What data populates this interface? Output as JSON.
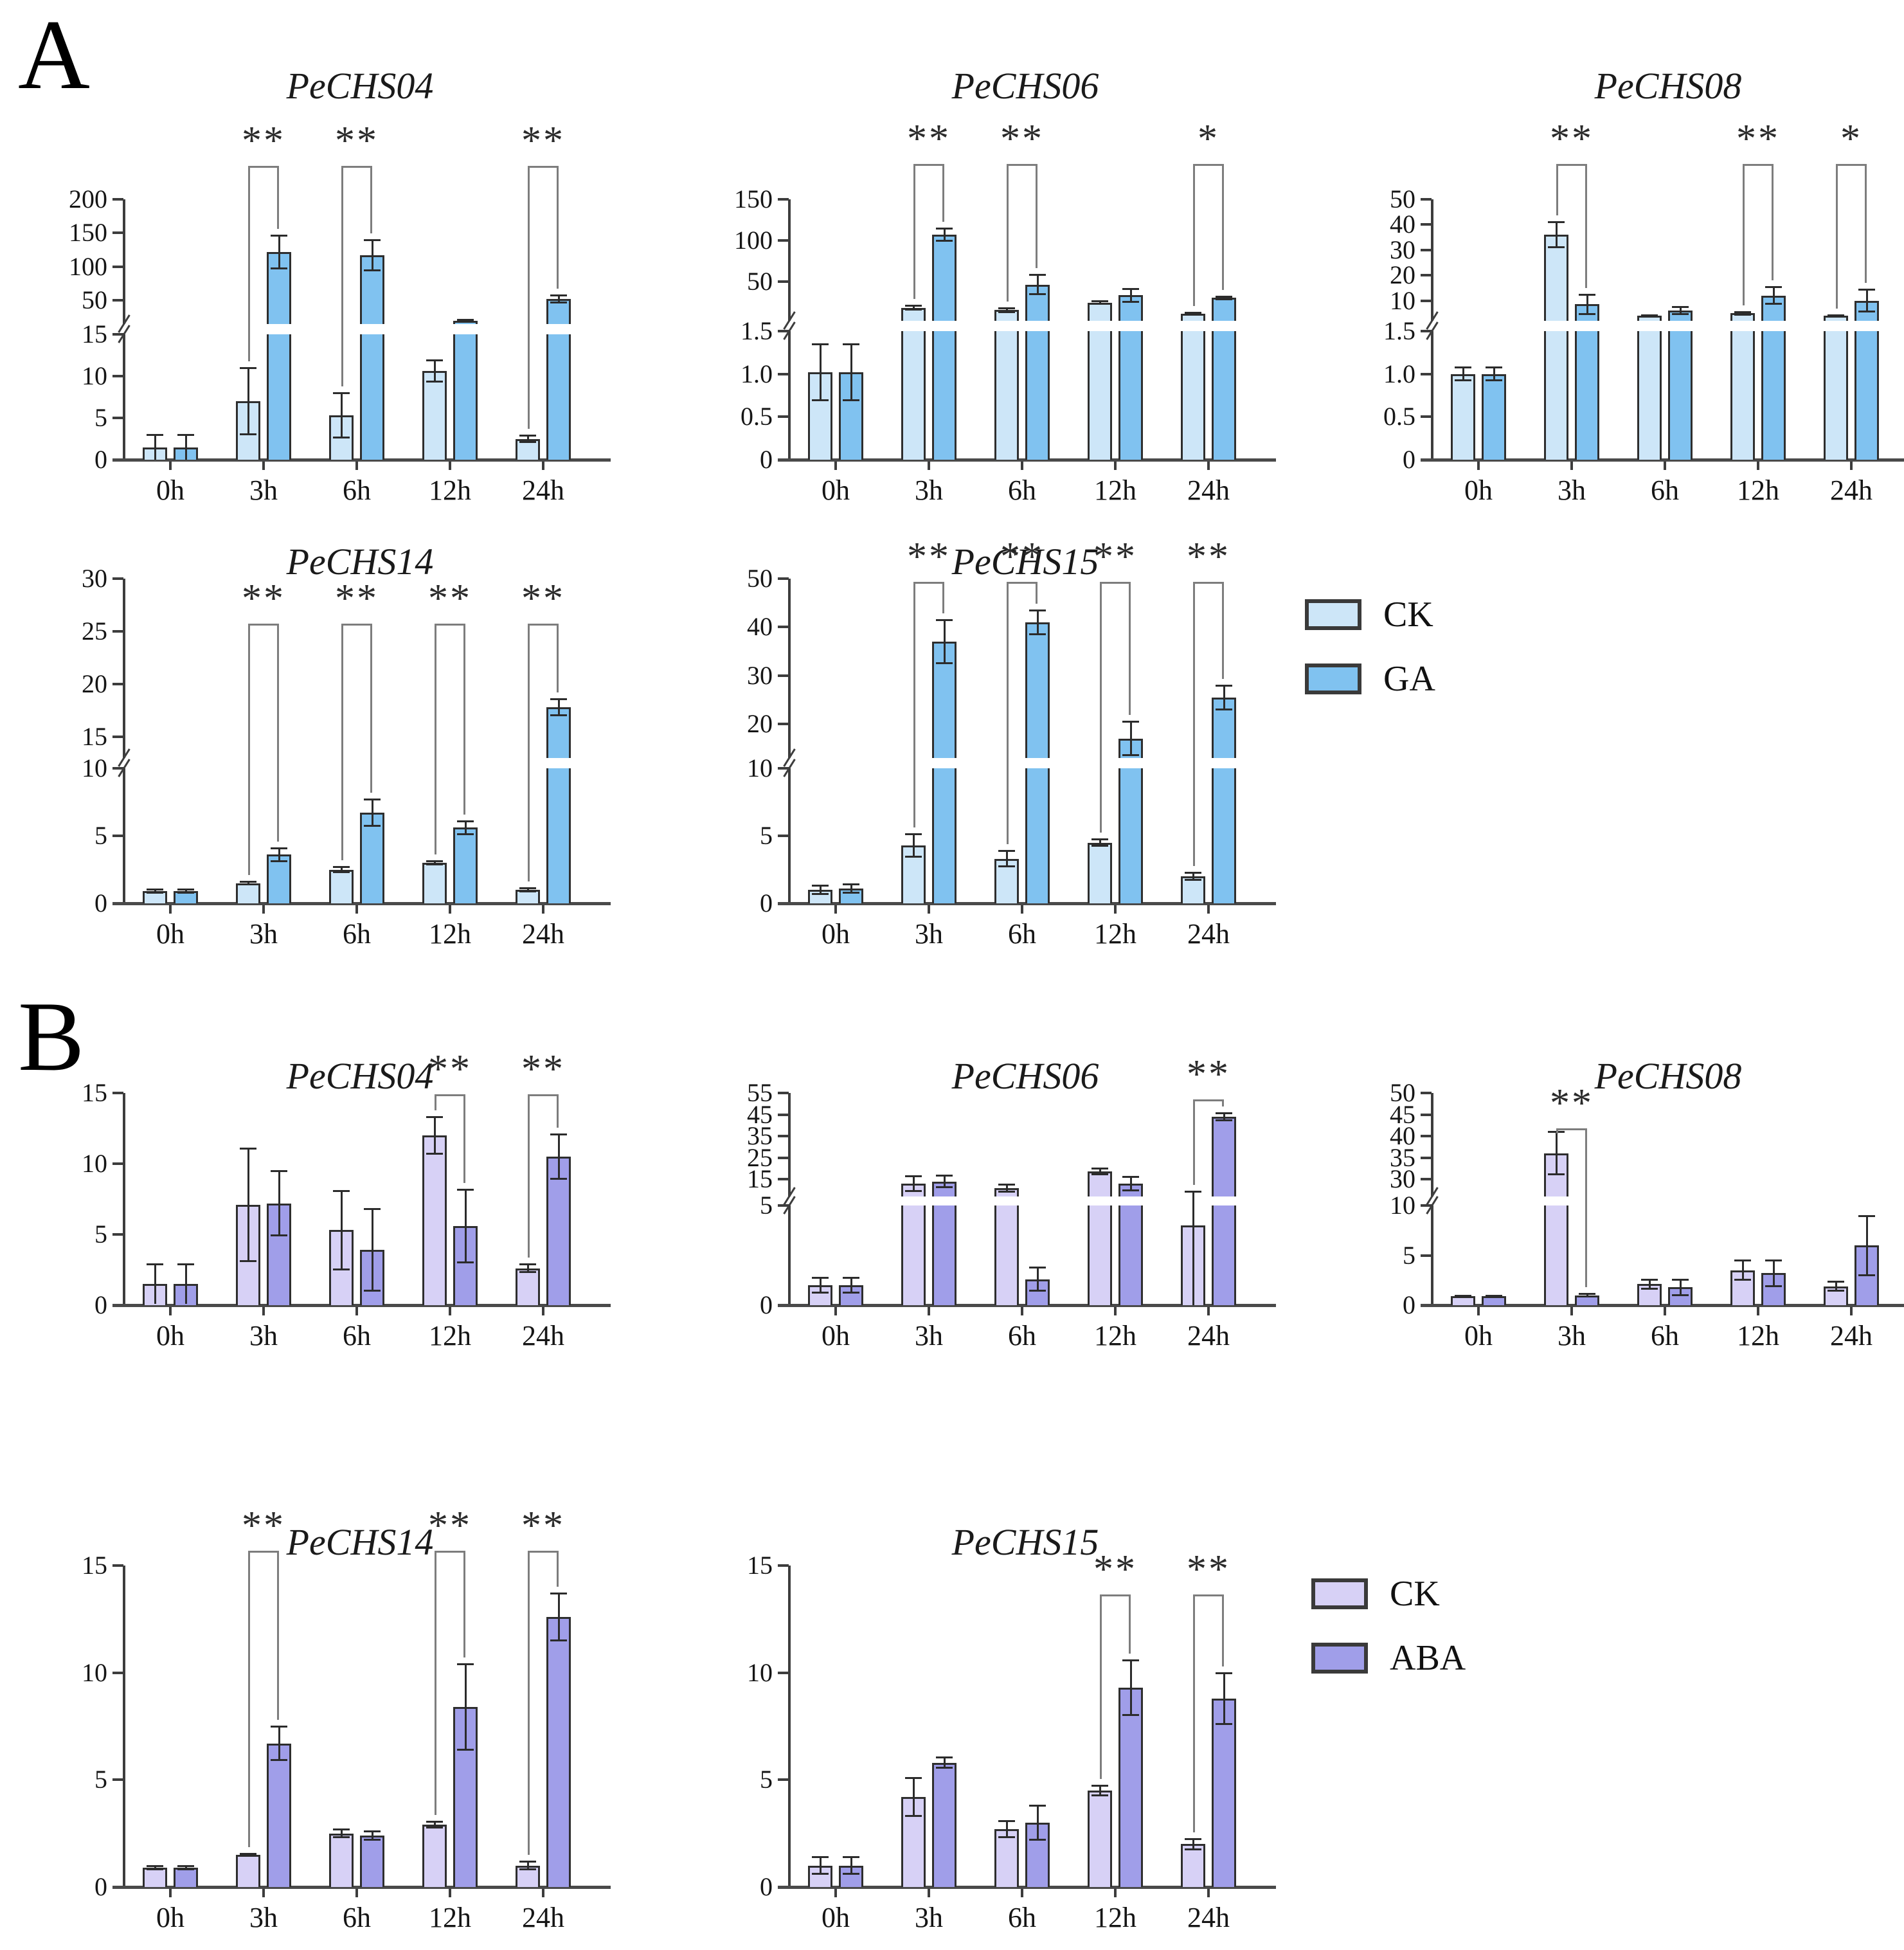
{
  "figure": {
    "panels": [
      {
        "label": "A",
        "treatment": "GA"
      },
      {
        "label": "B",
        "treatment": "ABA"
      }
    ],
    "x_axis_categories": [
      "0h",
      "3h",
      "6h",
      "12h",
      "24h"
    ]
  },
  "legends": [
    {
      "panel": "A",
      "items": [
        {
          "label": "CK",
          "color": "#cde6f8"
        },
        {
          "label": "GA",
          "color": "#80c2f0"
        }
      ]
    },
    {
      "panel": "B",
      "items": [
        {
          "label": "CK",
          "color": "#d7d1f6"
        },
        {
          "label": "ABA",
          "color": "#a09ee9"
        }
      ]
    }
  ],
  "chart_data": [
    {
      "panel": "A",
      "title": "PeCHS04",
      "type": "bar",
      "categories": [
        "0h",
        "3h",
        "6h",
        "12h",
        "24h"
      ],
      "series": [
        {
          "name": "CK",
          "color": "#cde6f8",
          "values": [
            1.5,
            7,
            5.3,
            10.6,
            2.5
          ],
          "errors": [
            1.5,
            4,
            2.7,
            1.3,
            0.4
          ]
        },
        {
          "name": "GA",
          "color": "#80c2f0",
          "values": [
            1.5,
            122,
            117,
            20,
            52
          ],
          "errors": [
            1.5,
            25,
            23,
            1.5,
            6
          ]
        }
      ],
      "axis": {
        "break": true,
        "lower": {
          "min": 0,
          "max": 15,
          "ticks": [
            0,
            5,
            10,
            15
          ],
          "tick_labels": [
            "0",
            "5",
            "10",
            "15"
          ]
        },
        "upper": {
          "min": 15,
          "max": 200,
          "ticks": [
            50,
            100,
            150,
            200
          ],
          "tick_labels": [
            "50",
            "100",
            "150",
            "200"
          ]
        }
      },
      "significance": [
        {
          "category": "3h",
          "label": "**"
        },
        {
          "category": "6h",
          "label": "**"
        },
        {
          "category": "24h",
          "label": "**"
        }
      ]
    },
    {
      "panel": "A",
      "title": "PeCHS06",
      "type": "bar",
      "categories": [
        "0h",
        "3h",
        "6h",
        "12h",
        "24h"
      ],
      "series": [
        {
          "name": "CK",
          "color": "#cde6f8",
          "values": [
            1.02,
            18,
            15,
            24,
            11
          ],
          "errors": [
            0.33,
            2.5,
            3,
            2,
            0.8
          ]
        },
        {
          "name": "GA",
          "color": "#80c2f0",
          "values": [
            1.02,
            107,
            46,
            33,
            30
          ],
          "errors": [
            0.33,
            8,
            12,
            8,
            2
          ]
        }
      ],
      "axis": {
        "break": true,
        "lower": {
          "min": 0,
          "max": 1.5,
          "ticks": [
            0,
            0.5,
            1.0,
            1.5
          ],
          "tick_labels": [
            "0",
            "0.5",
            "1.0",
            "1.5"
          ]
        },
        "upper": {
          "min": 2,
          "max": 150,
          "ticks": [
            50,
            100,
            150
          ],
          "tick_labels": [
            "50",
            "100",
            "150"
          ]
        }
      },
      "significance": [
        {
          "category": "3h",
          "label": "**"
        },
        {
          "category": "6h",
          "label": "**"
        },
        {
          "category": "24h",
          "label": "*"
        }
      ]
    },
    {
      "panel": "A",
      "title": "PeCHS08",
      "type": "bar",
      "categories": [
        "0h",
        "3h",
        "6h",
        "12h",
        "24h"
      ],
      "series": [
        {
          "name": "CK",
          "color": "#cde6f8",
          "values": [
            1.0,
            36,
            4,
            5,
            4
          ],
          "errors": [
            0.08,
            5,
            0.4,
            0.6,
            0.4
          ]
        },
        {
          "name": "GA",
          "color": "#80c2f0",
          "values": [
            1.0,
            8.5,
            6,
            12,
            10
          ],
          "errors": [
            0.08,
            4,
            1.5,
            3.5,
            4.5
          ]
        }
      ],
      "axis": {
        "break": true,
        "lower": {
          "min": 0,
          "max": 1.5,
          "ticks": [
            0,
            0.5,
            1.0,
            1.5
          ],
          "tick_labels": [
            "0",
            "0.5",
            "1.0",
            "1.5"
          ]
        },
        "upper": {
          "min": 2,
          "max": 50,
          "ticks": [
            10,
            20,
            30,
            40,
            50
          ],
          "tick_labels": [
            "10",
            "20",
            "30",
            "40",
            "50"
          ]
        }
      },
      "significance": [
        {
          "category": "3h",
          "label": "**"
        },
        {
          "category": "12h",
          "label": "**"
        },
        {
          "category": "24h",
          "label": "*"
        }
      ]
    },
    {
      "panel": "A",
      "title": "PeCHS14",
      "type": "bar",
      "categories": [
        "0h",
        "3h",
        "6h",
        "12h",
        "24h"
      ],
      "series": [
        {
          "name": "CK",
          "color": "#cde6f8",
          "values": [
            0.9,
            1.5,
            2.5,
            3.0,
            1.0
          ],
          "errors": [
            0.15,
            0.12,
            0.2,
            0.12,
            0.15
          ]
        },
        {
          "name": "GA",
          "color": "#80c2f0",
          "values": [
            0.9,
            3.6,
            6.7,
            5.6,
            17.8
          ],
          "errors": [
            0.15,
            0.5,
            1.0,
            0.5,
            0.8
          ]
        }
      ],
      "axis": {
        "break": true,
        "lower": {
          "min": 0,
          "max": 10,
          "ticks": [
            0,
            5,
            10
          ],
          "tick_labels": [
            "0",
            "5",
            "10"
          ]
        },
        "upper": {
          "min": 13,
          "max": 30,
          "ticks": [
            15,
            20,
            25,
            30
          ],
          "tick_labels": [
            "15",
            "20",
            "25",
            "30"
          ]
        }
      },
      "significance": [
        {
          "category": "3h",
          "label": "**"
        },
        {
          "category": "6h",
          "label": "**"
        },
        {
          "category": "12h",
          "label": "**"
        },
        {
          "category": "24h",
          "label": "**"
        }
      ]
    },
    {
      "panel": "A",
      "title": "PeCHS15",
      "type": "bar",
      "categories": [
        "0h",
        "3h",
        "6h",
        "12h",
        "24h"
      ],
      "series": [
        {
          "name": "CK",
          "color": "#cde6f8",
          "values": [
            1.0,
            4.3,
            3.3,
            4.5,
            2.0
          ],
          "errors": [
            0.35,
            0.85,
            0.6,
            0.25,
            0.3
          ]
        },
        {
          "name": "GA",
          "color": "#80c2f0",
          "values": [
            1.1,
            37,
            41,
            17,
            25.5
          ],
          "errors": [
            0.35,
            4.5,
            2.5,
            3.5,
            2.5
          ]
        }
      ],
      "axis": {
        "break": true,
        "lower": {
          "min": 0,
          "max": 10,
          "ticks": [
            0,
            5,
            10
          ],
          "tick_labels": [
            "0",
            "5",
            "10"
          ]
        },
        "upper": {
          "min": 13,
          "max": 50,
          "ticks": [
            20,
            30,
            40,
            50
          ],
          "tick_labels": [
            "20",
            "30",
            "40",
            "50"
          ]
        }
      },
      "significance": [
        {
          "category": "3h",
          "label": "**"
        },
        {
          "category": "6h",
          "label": "**"
        },
        {
          "category": "12h",
          "label": "**"
        },
        {
          "category": "24h",
          "label": "**"
        }
      ]
    },
    {
      "panel": "B",
      "title": "PeCHS04",
      "type": "bar",
      "categories": [
        "0h",
        "3h",
        "6h",
        "12h",
        "24h"
      ],
      "series": [
        {
          "name": "CK",
          "color": "#d7d1f6",
          "values": [
            1.5,
            7.1,
            5.3,
            12.0,
            2.6
          ],
          "errors": [
            1.4,
            4.0,
            2.8,
            1.3,
            0.3
          ]
        },
        {
          "name": "ABA",
          "color": "#a09ee9",
          "values": [
            1.5,
            7.2,
            3.9,
            5.6,
            10.5
          ],
          "errors": [
            1.4,
            2.3,
            2.9,
            2.6,
            1.6
          ]
        }
      ],
      "axis": {
        "break": false,
        "lower": {
          "min": 0,
          "max": 15,
          "ticks": [
            0,
            5,
            10,
            15
          ],
          "tick_labels": [
            "0",
            "5",
            "10",
            "15"
          ]
        }
      },
      "significance": [
        {
          "category": "12h",
          "label": "**"
        },
        {
          "category": "24h",
          "label": "**"
        }
      ]
    },
    {
      "panel": "B",
      "title": "PeCHS06",
      "type": "bar",
      "categories": [
        "0h",
        "3h",
        "6h",
        "12h",
        "24h"
      ],
      "series": [
        {
          "name": "CK",
          "color": "#d7d1f6",
          "values": [
            1.0,
            13,
            11,
            18.5,
            4.0
          ],
          "errors": [
            0.4,
            3.5,
            1.8,
            1.5,
            5.5
          ]
        },
        {
          "name": "ABA",
          "color": "#a09ee9",
          "values": [
            1.0,
            14,
            1.3,
            13,
            44
          ],
          "errors": [
            0.4,
            2.8,
            0.6,
            3.2,
            1.8
          ]
        }
      ],
      "axis": {
        "break": true,
        "lower": {
          "min": 0,
          "max": 5,
          "ticks": [
            0,
            5
          ],
          "tick_labels": [
            "0",
            "5"
          ]
        },
        "upper": {
          "min": 7,
          "max": 55,
          "ticks": [
            15,
            25,
            35,
            45,
            55
          ],
          "tick_labels": [
            "15",
            "25",
            "35",
            "45",
            "55"
          ]
        }
      },
      "significance": [
        {
          "category": "24h",
          "label": "**"
        }
      ]
    },
    {
      "panel": "B",
      "title": "PeCHS08",
      "type": "bar",
      "categories": [
        "0h",
        "3h",
        "6h",
        "12h",
        "24h"
      ],
      "series": [
        {
          "name": "CK",
          "color": "#d7d1f6",
          "values": [
            0.9,
            36,
            2.1,
            3.5,
            1.9
          ],
          "errors": [
            0.1,
            5,
            0.5,
            1.0,
            0.5
          ]
        },
        {
          "name": "ABA",
          "color": "#a09ee9",
          "values": [
            0.9,
            1.0,
            1.8,
            3.2,
            6.0
          ],
          "errors": [
            0.1,
            0.15,
            0.8,
            1.3,
            3.0
          ]
        }
      ],
      "axis": {
        "break": true,
        "lower": {
          "min": 0,
          "max": 10,
          "ticks": [
            0,
            5,
            10
          ],
          "tick_labels": [
            "0",
            "5",
            "10"
          ]
        },
        "upper": {
          "min": 26,
          "max": 50,
          "ticks": [
            30,
            35,
            40,
            45,
            50
          ],
          "tick_labels": [
            "30",
            "35",
            "40",
            "45",
            "50"
          ]
        }
      },
      "significance": [
        {
          "category": "3h",
          "label": "**"
        }
      ]
    },
    {
      "panel": "B",
      "title": "PeCHS14",
      "type": "bar",
      "categories": [
        "0h",
        "3h",
        "6h",
        "12h",
        "24h"
      ],
      "series": [
        {
          "name": "CK",
          "color": "#d7d1f6",
          "values": [
            0.9,
            1.5,
            2.5,
            2.9,
            1.0
          ],
          "errors": [
            0.1,
            0.06,
            0.2,
            0.15,
            0.2
          ]
        },
        {
          "name": "ABA",
          "color": "#a09ee9",
          "values": [
            0.9,
            6.7,
            2.4,
            8.4,
            12.6
          ],
          "errors": [
            0.1,
            0.8,
            0.2,
            2.0,
            1.1
          ]
        }
      ],
      "axis": {
        "break": false,
        "lower": {
          "min": 0,
          "max": 15,
          "ticks": [
            0,
            5,
            10,
            15
          ],
          "tick_labels": [
            "0",
            "5",
            "10",
            "15"
          ]
        }
      },
      "significance": [
        {
          "category": "3h",
          "label": "**"
        },
        {
          "category": "12h",
          "label": "**"
        },
        {
          "category": "24h",
          "label": "**"
        }
      ]
    },
    {
      "panel": "B",
      "title": "PeCHS15",
      "type": "bar",
      "categories": [
        "0h",
        "3h",
        "6h",
        "12h",
        "24h"
      ],
      "series": [
        {
          "name": "CK",
          "color": "#d7d1f6",
          "values": [
            1.0,
            4.2,
            2.7,
            4.5,
            2.0
          ],
          "errors": [
            0.4,
            0.9,
            0.4,
            0.25,
            0.25
          ]
        },
        {
          "name": "ABA",
          "color": "#a09ee9",
          "values": [
            1.0,
            5.8,
            3.0,
            9.3,
            8.8
          ],
          "errors": [
            0.4,
            0.25,
            0.8,
            1.3,
            1.2
          ]
        }
      ],
      "axis": {
        "break": false,
        "lower": {
          "min": 0,
          "max": 15,
          "ticks": [
            0,
            5,
            10,
            15
          ],
          "tick_labels": [
            "0",
            "5",
            "10",
            "15"
          ]
        }
      },
      "significance": [
        {
          "category": "12h",
          "label": "**"
        },
        {
          "category": "24h",
          "label": "**"
        }
      ]
    }
  ]
}
